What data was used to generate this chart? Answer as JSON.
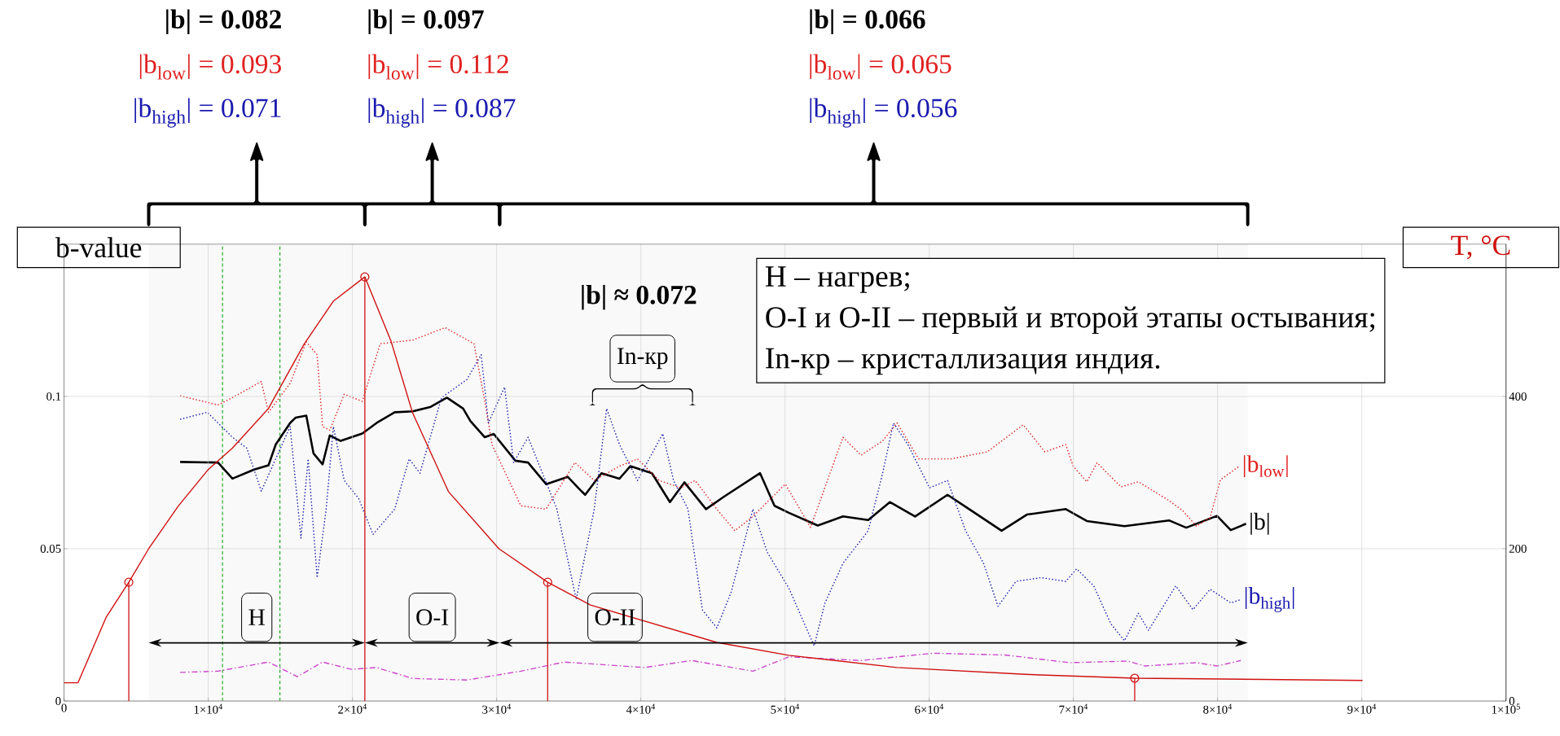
{
  "chart_data": {
    "type": "line",
    "ylabel": "b-value",
    "y2label": "T, °C",
    "annotations": [
      "|b| = 0.082",
      "|b$_{low}$| = 0.093",
      "|b$_{high}$| = 0.071",
      "|b| = 0.097",
      "|b$_{low}$| = 0.112",
      "|b$_{high}$| = 0.087",
      "|b| = 0.066",
      "|b$_{low}$| = 0.065",
      "|b$_{high}$| = 0.056",
      "|b| ≈ 0.072",
      "Н – нагрев;",
      "О-I и О-II – первый и второй этапы остывания;",
      "In-кр – кристаллизация индия.",
      "In-кр"
    ],
    "xlim": [
      0,
      100000
    ],
    "xticks": [
      0,
      {
        "value": 10000,
        "label": "1×10$^{4}$"
      },
      {
        "value": 20000,
        "label": "2×10$^{4}$"
      },
      {
        "value": 30000,
        "label": "3×10$^{4}$"
      },
      {
        "value": 40000,
        "label": "4×10$^{4}$"
      },
      {
        "value": 50000,
        "label": "5×10$^{4}$"
      },
      {
        "value": 60000,
        "label": "6×10$^{4}$"
      },
      {
        "value": 70000,
        "label": "7×10$^{4}$"
      },
      {
        "value": 80000,
        "label": "8×10$^{4}$"
      },
      {
        "value": 90000,
        "label": "9×10$^{4}$"
      },
      {
        "value": 100000,
        "label": "1×10$^{5}$"
      }
    ],
    "ylim": [
      0,
      0.15
    ],
    "yticks": [
      0,
      0.05,
      0.1
    ],
    "y2lim": [
      0,
      600
    ],
    "y2ticks": [
      0,
      200,
      400
    ],
    "grid": true,
    "ref_lines": [
      {
        "axis": "x",
        "value": 10990,
        "color": "#22aa22",
        "line_style": "dashed"
      },
      {
        "axis": "x",
        "value": 14970,
        "color": "#22aa22",
        "line_style": "dashed"
      }
    ],
    "bands": [
      {
        "axis": "x",
        "from": 5870,
        "to": 20860,
        "label": "Н"
      },
      {
        "axis": "x",
        "from": 20860,
        "to": 30210,
        "label": "О-I"
      },
      {
        "axis": "x",
        "from": 30210,
        "to": 82090,
        "label": "О-II"
      }
    ],
    "series": [
      {
        "name": "|b|",
        "color": "#000000",
        "line_style": "solid",
        "x": [
          8050,
          10680,
          11680,
          13180,
          14180,
          14680,
          15680,
          16050,
          16800,
          17300,
          17930,
          18430,
          19180,
          20680,
          21680,
          22930,
          24180,
          25430,
          26550,
          27680,
          28180,
          29180,
          29800,
          31300,
          32180,
          33430,
          34930,
          35880,
          36140,
          37270,
          38520,
          39270,
          40770,
          42020,
          43020,
          44520,
          45770,
          48270,
          49270,
          50270,
          52270,
          54020,
          55770,
          57270,
          59020,
          61270,
          62770,
          65020,
          66770,
          69470,
          70930,
          73540,
          76630,
          77820,
          79960,
          80910,
          81970
        ],
        "values": [
          0.0785,
          0.0783,
          0.073,
          0.076,
          0.0774,
          0.0842,
          0.0913,
          0.093,
          0.0937,
          0.0813,
          0.0777,
          0.0872,
          0.0854,
          0.0878,
          0.0913,
          0.0948,
          0.0951,
          0.0966,
          0.0996,
          0.096,
          0.0919,
          0.0866,
          0.0877,
          0.0789,
          0.0783,
          0.0712,
          0.0736,
          0.0689,
          0.0677,
          0.0748,
          0.073,
          0.0771,
          0.0748,
          0.0653,
          0.0718,
          0.063,
          0.0671,
          0.0748,
          0.0641,
          0.0618,
          0.0576,
          0.0606,
          0.0594,
          0.0653,
          0.0606,
          0.0677,
          0.063,
          0.0559,
          0.0612,
          0.063,
          0.0591,
          0.0574,
          0.0593,
          0.0569,
          0.0608,
          0.0561,
          0.0582
        ]
      },
      {
        "name": "|b$_{low}$|",
        "color": "#e02020",
        "line_style": "dotted",
        "x": [
          8050,
          10680,
          11680,
          13680,
          14180,
          15680,
          16800,
          17550,
          17930,
          18430,
          19430,
          20680,
          21930,
          24180,
          26430,
          28430,
          29180,
          29680,
          31680,
          33430,
          35430,
          36770,
          38520,
          39770,
          41270,
          42770,
          43770,
          45270,
          46520,
          47770,
          50020,
          51770,
          54020,
          55270,
          56770,
          57770,
          59270,
          61520,
          64020,
          66520,
          68020,
          69470,
          69980,
          70930,
          71640,
          73300,
          74500,
          76630,
          77580,
          78530,
          79480,
          80190,
          81500
        ],
        "values": [
          0.1002,
          0.0972,
          0.0996,
          0.1049,
          0.0948,
          0.1043,
          0.1179,
          0.1137,
          0.0901,
          0.0889,
          0.1007,
          0.0984,
          0.1173,
          0.1185,
          0.1226,
          0.1173,
          0.0984,
          0.0842,
          0.0641,
          0.063,
          0.0783,
          0.0724,
          0.0771,
          0.0795,
          0.0724,
          0.07,
          0.0724,
          0.063,
          0.0559,
          0.0606,
          0.0712,
          0.057,
          0.0866,
          0.0807,
          0.0854,
          0.0913,
          0.0795,
          0.0795,
          0.0818,
          0.0907,
          0.0818,
          0.0842,
          0.0771,
          0.072,
          0.0782,
          0.0703,
          0.072,
          0.0658,
          0.0625,
          0.0574,
          0.0602,
          0.0726,
          0.0771
        ]
      },
      {
        "name": "|b$_{high}$|",
        "color": "#1a1ab0",
        "line_style": "dotted",
        "x": [
          8050,
          9930,
          11680,
          12680,
          13680,
          14680,
          15680,
          16430,
          16930,
          17550,
          18180,
          18680,
          19430,
          20430,
          21430,
          22930,
          23930,
          24680,
          26180,
          27930,
          28930,
          29430,
          30550,
          31180,
          32180,
          34180,
          35520,
          36770,
          37630,
          38520,
          39770,
          41520,
          42270,
          43270,
          44270,
          45270,
          46270,
          47770,
          48770,
          50270,
          52020,
          52770,
          54020,
          55770,
          56770,
          57520,
          58520,
          60020,
          61270,
          62520,
          63770,
          64770,
          66020,
          67770,
          69470,
          70220,
          71410,
          72590,
          73540,
          74500,
          75210,
          77100,
          78290,
          79480,
          80910,
          81610
        ],
        "values": [
          0.0925,
          0.0948,
          0.0866,
          0.083,
          0.0689,
          0.0795,
          0.0901,
          0.0535,
          0.0795,
          0.0405,
          0.063,
          0.0901,
          0.0724,
          0.0665,
          0.0547,
          0.063,
          0.0795,
          0.0748,
          0.0996,
          0.1055,
          0.1137,
          0.0913,
          0.1031,
          0.0783,
          0.0866,
          0.063,
          0.0334,
          0.063,
          0.096,
          0.0842,
          0.0724,
          0.0878,
          0.0724,
          0.063,
          0.0299,
          0.024,
          0.0358,
          0.063,
          0.0488,
          0.037,
          0.0181,
          0.0322,
          0.0452,
          0.0559,
          0.0748,
          0.0913,
          0.0842,
          0.07,
          0.0724,
          0.0559,
          0.0452,
          0.0311,
          0.0393,
          0.0405,
          0.0393,
          0.0434,
          0.0378,
          0.0254,
          0.0198,
          0.0288,
          0.0232,
          0.0378,
          0.03,
          0.0367,
          0.0322,
          0.0333
        ]
      },
      {
        "color": "#cc44cc",
        "line_style": "dashed",
        "x": [
          8050,
          10680,
          14180,
          16180,
          17930,
          19930,
          21680,
          24180,
          27930,
          31680,
          34680,
          40270,
          43520,
          47770,
          50270,
          55270,
          60270,
          65270,
          69740,
          73770,
          74940,
          78530,
          79960,
          81610
        ],
        "values": [
          0.0094,
          0.0098,
          0.0128,
          0.008,
          0.0128,
          0.0104,
          0.011,
          0.0074,
          0.0069,
          0.0098,
          0.0128,
          0.011,
          0.0133,
          0.0098,
          0.0145,
          0.0133,
          0.0157,
          0.0151,
          0.0126,
          0.0131,
          0.0115,
          0.0126,
          0.0115,
          0.0133
        ]
      },
      {
        "type": "line",
        "axis": "y2",
        "color": "#d01010",
        "line_style": "solid",
        "x": [
          0,
          970,
          2920,
          4490,
          5870,
          7920,
          10000,
          11670,
          14170,
          16660,
          18670,
          20860,
          22670,
          24160,
          26660,
          30160,
          33540,
          36510,
          45260,
          50250,
          57760,
          66670,
          74250,
          90050
        ],
        "values": [
          24,
          24,
          110,
          156,
          200,
          256,
          304,
          332,
          384,
          469,
          525,
          557,
          473,
          379,
          275,
          200,
          156,
          126,
          77,
          60,
          44,
          35,
          30,
          27
        ]
      },
      {
        "type": "lollipop",
        "axis": "y2",
        "color": "#d01010",
        "marker": "circle",
        "x": [
          4490,
          20860,
          33540,
          74250
        ],
        "values": [
          156,
          557,
          156,
          30
        ]
      }
    ]
  }
}
